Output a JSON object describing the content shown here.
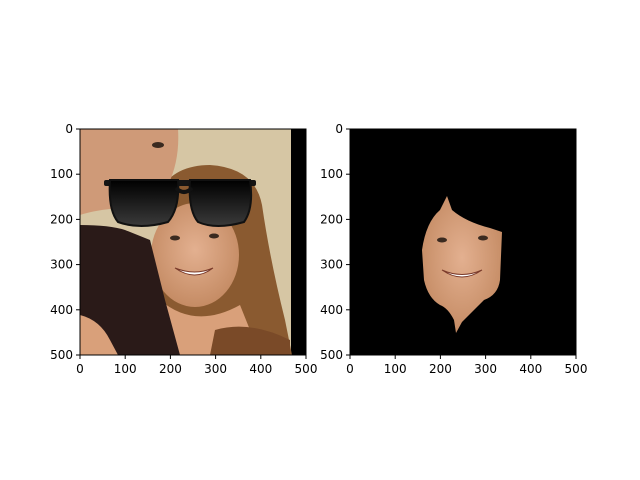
{
  "figure": {
    "panels": [
      {
        "id": "left",
        "content": "photo of a smiling man and woman with cartoon sunglasses overlay",
        "xticks": [
          "0",
          "100",
          "200",
          "300",
          "400",
          "500"
        ],
        "yticks": [
          "0",
          "100",
          "200",
          "300",
          "400",
          "500"
        ]
      },
      {
        "id": "right",
        "content": "segmented face of the woman on black background",
        "xticks": [
          "0",
          "100",
          "200",
          "300",
          "400",
          "500"
        ],
        "yticks": [
          "0",
          "100",
          "200",
          "300",
          "400",
          "500"
        ]
      }
    ]
  },
  "colors": {
    "background_wall": "#d8c8a8",
    "hair": "#8a5a30",
    "skin": "#d9a07a",
    "man_shirt": "#2a1a18",
    "glasses": "#141414",
    "mask_bg": "#000000"
  }
}
